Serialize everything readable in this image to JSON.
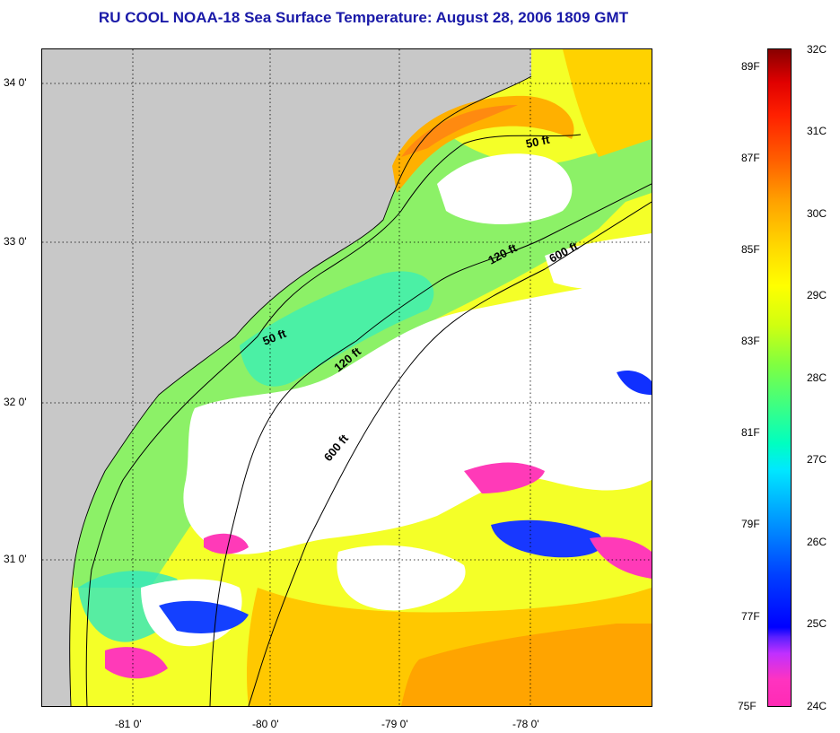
{
  "title": "RU COOL  NOAA-18  Sea Surface Temperature:  August 28, 2006 1809 GMT",
  "map": {
    "lat_labels": [
      "34 0'",
      "33 0'",
      "32 0'",
      "31 0'"
    ],
    "lon_labels": [
      "-81 0'",
      "-80 0'",
      "-79 0'",
      "-78 0'"
    ],
    "isobaths": [
      {
        "label": "50 ft"
      },
      {
        "label": "120 ft"
      },
      {
        "label": "600 ft"
      }
    ],
    "colors": {
      "land": "#c8c8c8",
      "cloud": "#ffffff",
      "warm": "#ffa000",
      "hot": "#ff6a00",
      "mid": "#e8ff20",
      "green": "#7cff5a",
      "cool": "#20e0a0",
      "cold": "#1070ff",
      "coldest": "#ff30b8"
    }
  },
  "colorbar": {
    "celsius": [
      "32C",
      "31C",
      "30C",
      "29C",
      "28C",
      "27C",
      "26C",
      "25C",
      "24C"
    ],
    "fahrenheit": [
      "89F",
      "87F",
      "85F",
      "83F",
      "81F",
      "79F",
      "77F",
      "75F"
    ]
  }
}
